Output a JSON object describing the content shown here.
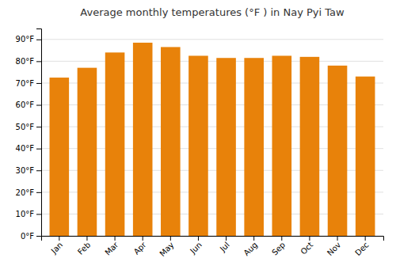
{
  "chart_data": {
    "type": "bar",
    "title": "Average monthly temperatures (°F ) in Nay Pyi Taw",
    "categories": [
      "Jan",
      "Feb",
      "Mar",
      "Apr",
      "May",
      "Jun",
      "Jul",
      "Aug",
      "Sep",
      "Oct",
      "Nov",
      "Dec"
    ],
    "values": [
      72.5,
      77.0,
      84.0,
      88.5,
      86.5,
      82.5,
      81.5,
      81.5,
      82.5,
      82.0,
      78.0,
      73.0
    ],
    "color": "#E8820A",
    "ylim": [
      0,
      95
    ],
    "yticks": [
      {
        "value": 0,
        "label": "0°F"
      },
      {
        "value": 10,
        "label": "10°F"
      },
      {
        "value": 20,
        "label": "20°F"
      },
      {
        "value": 30,
        "label": "30°F"
      },
      {
        "value": 40,
        "label": "40°F"
      },
      {
        "value": 50,
        "label": "50°F"
      },
      {
        "value": 60,
        "label": "60°F"
      },
      {
        "value": 70,
        "label": "70°F"
      },
      {
        "value": 80,
        "label": "80°F"
      },
      {
        "value": 90,
        "label": "90°F"
      }
    ],
    "grid": true
  }
}
